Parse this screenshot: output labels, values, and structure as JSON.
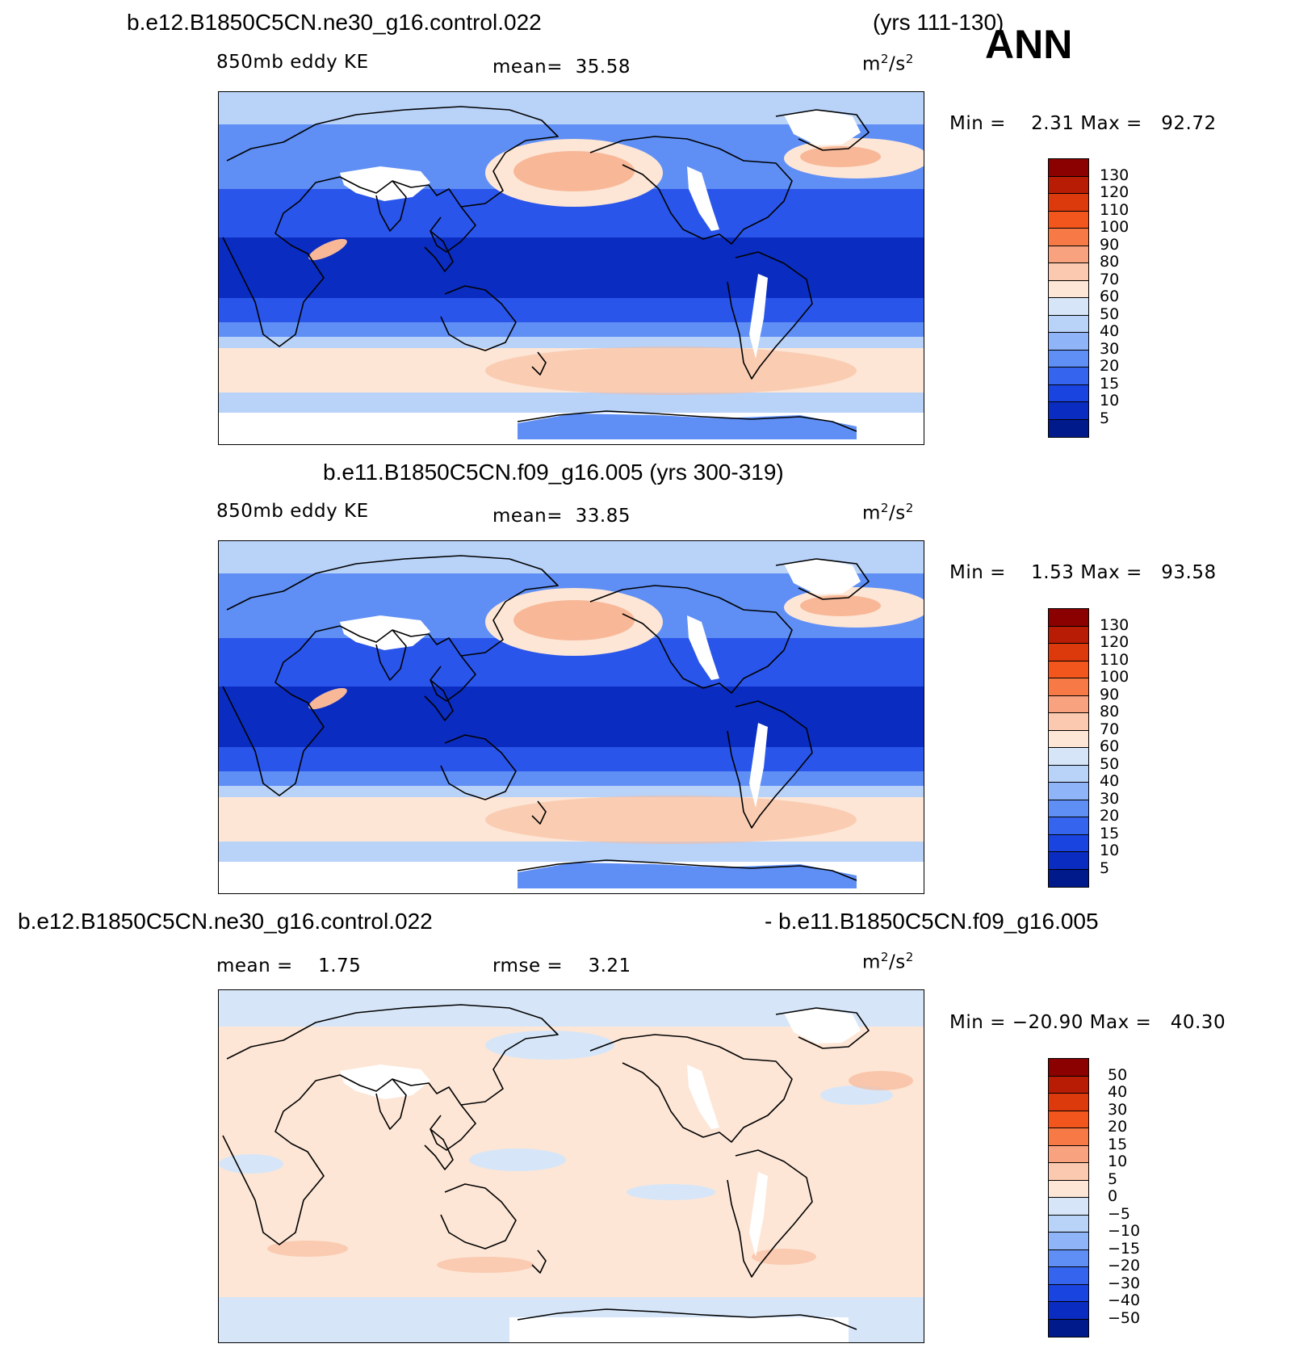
{
  "panels": [
    {
      "title": "b.e12.B1850C5CN.ne30_g16.control.022",
      "years": "(yrs 111-130)",
      "variable": "850mb eddy KE",
      "mean_label": "mean=",
      "mean_value": "35.58",
      "units_base": "m",
      "units_exp": "2",
      "units_mid": "/s",
      "units_exp2": "2",
      "min_label": "Min =",
      "min_value": "2.31",
      "max_label": "Max =",
      "max_value": "92.72"
    },
    {
      "title": "b.e11.B1850C5CN.f09_g16.005 (yrs 300-319)",
      "variable": "850mb eddy KE",
      "mean_label": "mean=",
      "mean_value": "33.85",
      "units_base": "m",
      "units_exp": "2",
      "units_mid": "/s",
      "units_exp2": "2",
      "min_label": "Min =",
      "min_value": "1.53",
      "max_label": "Max =",
      "max_value": "93.58"
    },
    {
      "title_left": "b.e12.B1850C5CN.ne30_g16.control.022",
      "title_right": "- b.e11.B1850C5CN.f09_g16.005",
      "mean_label": "mean =",
      "mean_value": "1.75",
      "rmse_label": "rmse =",
      "rmse_value": "3.21",
      "units_base": "m",
      "units_exp": "2",
      "units_mid": "/s",
      "units_exp2": "2",
      "min_label": "Min =",
      "min_value": "−20.90",
      "max_label": "Max =",
      "max_value": "40.30"
    }
  ],
  "season": "ANN",
  "colorbars": {
    "abs_labels": [
      "130",
      "120",
      "110",
      "100",
      "90",
      "80",
      "70",
      "60",
      "50",
      "40",
      "30",
      "20",
      "15",
      "10",
      "5"
    ],
    "abs_colors": [
      "#8b0000",
      "#b81c05",
      "#dc3a0d",
      "#f2561c",
      "#f77a46",
      "#f8a27f",
      "#fbc9b0",
      "#fde6d6",
      "#d6e6f8",
      "#b8d2f8",
      "#8fb4f8",
      "#5f8ff5",
      "#3565ee",
      "#1a44e0",
      "#0a2cc0",
      "#001a8c"
    ],
    "diff_labels": [
      "50",
      "40",
      "30",
      "20",
      "15",
      "10",
      "5",
      "0",
      "−5",
      "−10",
      "−15",
      "−20",
      "−30",
      "−40",
      "−50"
    ],
    "diff_colors": [
      "#8b0000",
      "#b81c05",
      "#dc3a0d",
      "#f2561c",
      "#f77a46",
      "#f8a27f",
      "#fbc9b0",
      "#fde6d6",
      "#d6e6f8",
      "#b8d2f8",
      "#8fb4f8",
      "#5f8ff5",
      "#3565ee",
      "#1a44e0",
      "#0a2cc0",
      "#001a8c"
    ]
  },
  "map_palette": {
    "white": "#ffffff",
    "pale_blue": "#d6e6f8",
    "light_blue": "#b8d2f8",
    "mid_blue": "#5f8ff5",
    "blue": "#2a55ea",
    "deep_blue": "#0a2cc0",
    "peach": "#fde6d6",
    "salmon": "#f8b898",
    "orange": "#f78a5c",
    "coast": "#000000"
  }
}
